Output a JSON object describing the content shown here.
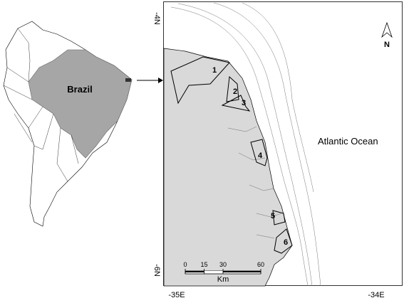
{
  "inset": {
    "country": "Brazil"
  },
  "map": {
    "ocean": "Atlantic Ocean",
    "north": "N",
    "lat_labels": [
      "-4N",
      "-6N"
    ],
    "lon_labels": [
      "-35E",
      "-34E"
    ],
    "zones": [
      "1",
      "2",
      "3",
      "4",
      "5",
      "6"
    ]
  },
  "scale_bar": {
    "ticks": [
      0,
      15,
      30,
      60
    ],
    "unit": "Km"
  }
}
